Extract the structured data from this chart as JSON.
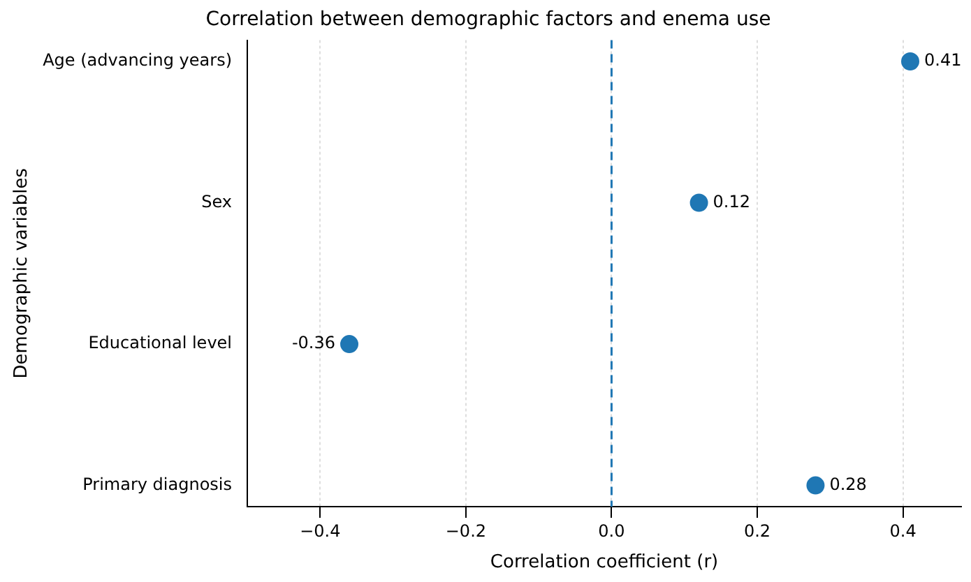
{
  "chart_data": {
    "type": "scatter",
    "orientation": "horizontal",
    "title": "Correlation between demographic factors and enema use",
    "xlabel": "Correlation coefficient (r)",
    "ylabel": "Demographic variables",
    "categories": [
      "Age (advancing years)",
      "Sex",
      "Educational level",
      "Primary diagnosis"
    ],
    "series": [
      {
        "color": "#1f77b4",
        "values": [
          0.41,
          0.12,
          -0.36,
          0.28
        ]
      }
    ],
    "xlim": [
      -0.5,
      0.48
    ],
    "xticks": [
      {
        "value": -0.4,
        "label": "−0.4"
      },
      {
        "value": -0.2,
        "label": "−0.2"
      },
      {
        "value": 0,
        "label": "0.0"
      },
      {
        "value": 0.2,
        "label": "0.2"
      },
      {
        "value": 0.4,
        "label": "0.4"
      }
    ],
    "ref_lines": [
      {
        "axis": "x",
        "value": 0,
        "color": "#1f77b4",
        "line_style": "dashed"
      }
    ],
    "data_labels": true,
    "grid": "x",
    "marker": "circle",
    "legend": false
  }
}
